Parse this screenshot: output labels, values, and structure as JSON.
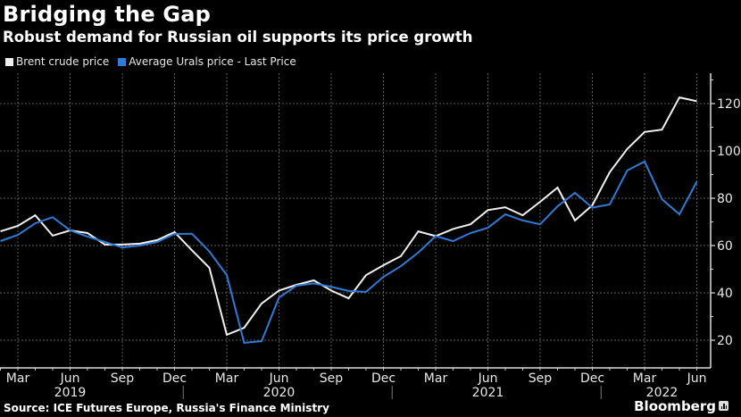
{
  "header": {
    "title": "Bridging the Gap",
    "subtitle": "Robust demand for Russian oil supports its price growth"
  },
  "footer": {
    "source": "Source: ICE Futures Europe, Russia's Finance Ministry",
    "brand": "Bloomberg",
    "brand_icon": "bloomberg-chart-icon"
  },
  "chart_data": {
    "type": "line",
    "title": "Bridging the Gap",
    "subtitle": "Robust demand for Russian oil supports its price growth",
    "xlabel": "",
    "ylabel": "",
    "ylim": [
      10,
      132
    ],
    "y_ticks": [
      20,
      40,
      60,
      80,
      100,
      120
    ],
    "y_axis_side": "right",
    "grid": true,
    "legend_position": "top-left",
    "x": [
      "2019-02",
      "2019-03",
      "2019-04",
      "2019-05",
      "2019-06",
      "2019-07",
      "2019-08",
      "2019-09",
      "2019-10",
      "2019-11",
      "2019-12",
      "2020-01",
      "2020-02",
      "2020-03",
      "2020-04",
      "2020-05",
      "2020-06",
      "2020-07",
      "2020-08",
      "2020-09",
      "2020-10",
      "2020-11",
      "2020-12",
      "2021-01",
      "2021-02",
      "2021-03",
      "2021-04",
      "2021-05",
      "2021-06",
      "2021-07",
      "2021-08",
      "2021-09",
      "2021-10",
      "2021-11",
      "2021-12",
      "2022-01",
      "2022-02",
      "2022-03",
      "2022-04",
      "2022-05",
      "2022-06"
    ],
    "x_tick_labels": [
      {
        "month_index": 1,
        "label": "Mar"
      },
      {
        "month_index": 4,
        "label": "Jun"
      },
      {
        "month_index": 7,
        "label": "Sep"
      },
      {
        "month_index": 10,
        "label": "Dec"
      },
      {
        "month_index": 13,
        "label": "Mar"
      },
      {
        "month_index": 16,
        "label": "Jun"
      },
      {
        "month_index": 19,
        "label": "Sep"
      },
      {
        "month_index": 22,
        "label": "Dec"
      },
      {
        "month_index": 25,
        "label": "Mar"
      },
      {
        "month_index": 28,
        "label": "Jun"
      },
      {
        "month_index": 31,
        "label": "Sep"
      },
      {
        "month_index": 34,
        "label": "Dec"
      },
      {
        "month_index": 37,
        "label": "Mar"
      },
      {
        "month_index": 40,
        "label": "Jun"
      }
    ],
    "year_labels": [
      {
        "month_index": 4,
        "label": "2019"
      },
      {
        "month_index": 16,
        "label": "2020"
      },
      {
        "month_index": 28,
        "label": "2021"
      },
      {
        "month_index": 38,
        "label": "2022"
      }
    ],
    "year_separators": [
      10.5,
      22.5,
      34.5
    ],
    "series": [
      {
        "name": "Brent crude price",
        "color": "#f0f0f0",
        "values": [
          66,
          68.3,
          72.8,
          64.2,
          66.4,
          65.3,
          60.4,
          60.4,
          60.8,
          62.3,
          65.7,
          58,
          50.6,
          22.3,
          25.3,
          35.5,
          41,
          43.4,
          45.3,
          41,
          37.7,
          47.5,
          51.7,
          55.5,
          66,
          64,
          67,
          69,
          75,
          76.2,
          72.8,
          78.5,
          84.5,
          70.6,
          77,
          91,
          100.8,
          108,
          109,
          122.6,
          121
        ]
      },
      {
        "name": "Average Urals price - Last Price",
        "color": "#2f7bd6",
        "values": [
          61.9,
          64.5,
          69.4,
          72,
          66.4,
          63.8,
          61.5,
          59.2,
          60,
          61.5,
          64.9,
          65,
          57.5,
          47.5,
          18.9,
          19.6,
          38,
          43,
          44,
          42.6,
          40.8,
          40.4,
          46.8,
          51.3,
          57,
          64,
          61.9,
          65.3,
          67.5,
          73.2,
          70.6,
          69,
          76.6,
          82.3,
          76,
          77.4,
          91.7,
          95.5,
          79.6,
          73.2,
          87
        ]
      }
    ]
  }
}
